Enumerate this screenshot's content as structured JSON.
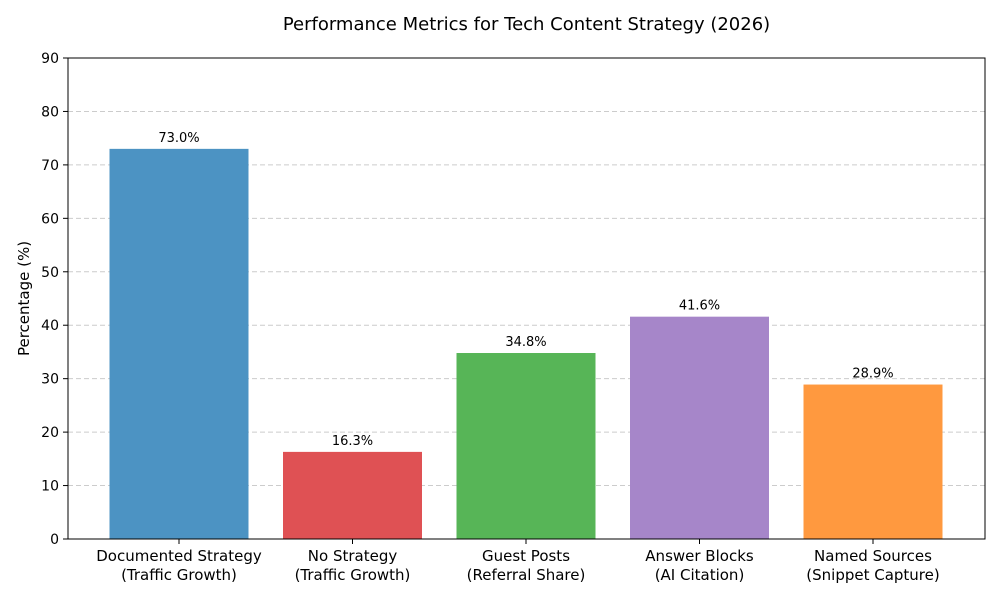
{
  "chart_data": {
    "type": "bar",
    "title": "Performance Metrics for Tech Content Strategy (2026)",
    "xlabel": "",
    "ylabel": "Percentage (%)",
    "ylim": [
      0,
      90
    ],
    "yticks": [
      0,
      10,
      20,
      30,
      40,
      50,
      60,
      70,
      80,
      90
    ],
    "grid": true,
    "categories": [
      [
        "Documented Strategy",
        "(Traffic Growth)"
      ],
      [
        "No Strategy",
        "(Traffic Growth)"
      ],
      [
        "Guest Posts",
        "(Referral Share)"
      ],
      [
        "Answer Blocks",
        "(AI Citation)"
      ],
      [
        "Named Sources",
        "(Snippet Capture)"
      ]
    ],
    "values": [
      73.0,
      16.3,
      34.8,
      41.6,
      28.9
    ],
    "value_labels": [
      "73.0%",
      "16.3%",
      "34.8%",
      "41.6%",
      "28.9%"
    ],
    "colors": [
      "#4c93c3",
      "#df5154",
      "#57b557",
      "#a686c9",
      "#ff993f"
    ]
  }
}
